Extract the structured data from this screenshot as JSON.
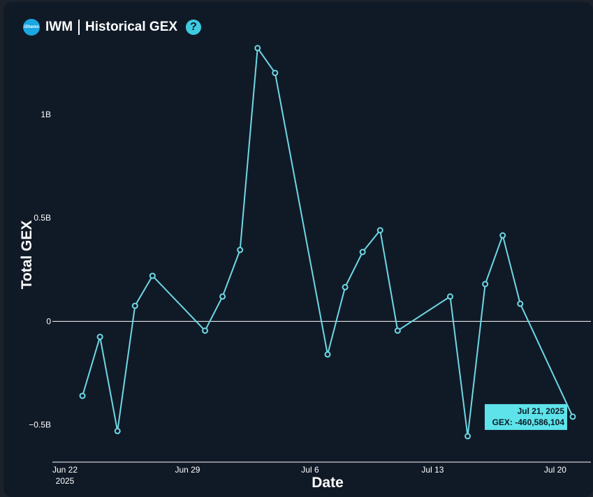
{
  "header": {
    "logo_text": "iShares",
    "ticker": "IWM",
    "title": "Historical GEX",
    "help_glyph": "?"
  },
  "colors": {
    "background": "#101a27",
    "line": "#6fd8e4",
    "tooltip_bg": "#5ee3ea",
    "text": "#ffffff"
  },
  "chart_data": {
    "type": "line",
    "xlabel": "Date",
    "ylabel": "Total GEX",
    "x_ticks": [
      {
        "date": "2025-06-22",
        "label": "Jun 22",
        "sublabel": "2025"
      },
      {
        "date": "2025-06-29",
        "label": "Jun 29"
      },
      {
        "date": "2025-07-06",
        "label": "Jul 6"
      },
      {
        "date": "2025-07-13",
        "label": "Jul 13"
      },
      {
        "date": "2025-07-20",
        "label": "Jul 20"
      }
    ],
    "y_ticks": [
      {
        "value": -500000000,
        "label": "−0.5B"
      },
      {
        "value": 0,
        "label": "0"
      },
      {
        "value": 500000000,
        "label": "0.5B"
      },
      {
        "value": 1000000000,
        "label": "1B"
      }
    ],
    "xlim": [
      "2025-06-22",
      "2025-07-21"
    ],
    "ylim": [
      -680000000,
      1350000000
    ],
    "series": [
      {
        "points": [
          {
            "x": "2025-06-23",
            "y": -360000000
          },
          {
            "x": "2025-06-24",
            "y": -75000000
          },
          {
            "x": "2025-06-25",
            "y": -530000000
          },
          {
            "x": "2025-06-26",
            "y": 75000000
          },
          {
            "x": "2025-06-27",
            "y": 220000000
          },
          {
            "x": "2025-06-30",
            "y": -45000000
          },
          {
            "x": "2025-07-01",
            "y": 120000000
          },
          {
            "x": "2025-07-02",
            "y": 345000000
          },
          {
            "x": "2025-07-03",
            "y": 1320000000
          },
          {
            "x": "2025-07-04",
            "y": 1200000000
          },
          {
            "x": "2025-07-07",
            "y": -160000000
          },
          {
            "x": "2025-07-08",
            "y": 165000000
          },
          {
            "x": "2025-07-09",
            "y": 335000000
          },
          {
            "x": "2025-07-10",
            "y": 440000000
          },
          {
            "x": "2025-07-11",
            "y": -45000000
          },
          {
            "x": "2025-07-14",
            "y": 120000000
          },
          {
            "x": "2025-07-15",
            "y": -555000000
          },
          {
            "x": "2025-07-16",
            "y": 180000000
          },
          {
            "x": "2025-07-17",
            "y": 415000000
          },
          {
            "x": "2025-07-18",
            "y": 85000000
          },
          {
            "x": "2025-07-21",
            "y": -460586104
          }
        ]
      }
    ],
    "tooltip": {
      "date_label": "Jul 21, 2025",
      "value_label": "GEX: -460,586,104"
    }
  }
}
